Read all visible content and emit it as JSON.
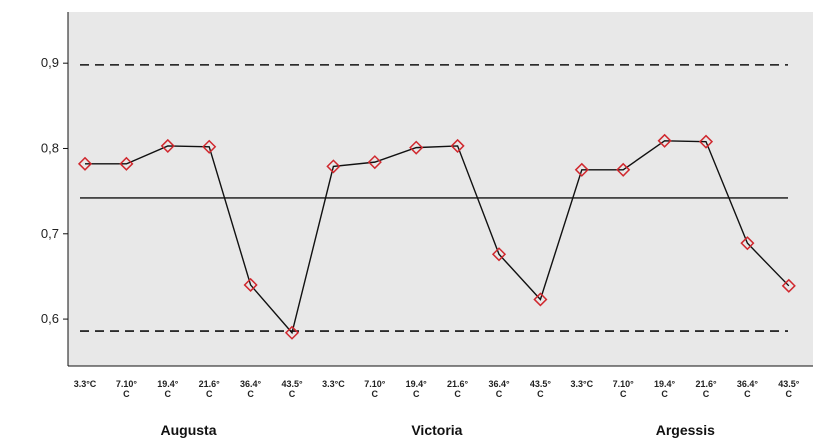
{
  "chart_data": {
    "type": "line",
    "title": "",
    "xlabel": "",
    "ylabel": "",
    "ylim": [
      0.545,
      0.96
    ],
    "yticks": [
      "0,6",
      "0,7",
      "0,8",
      "0,9"
    ],
    "yticks_values": [
      0.6,
      0.7,
      0.8,
      0.9
    ],
    "grid": false,
    "categories": [
      "3.3°C",
      "7.10° C",
      "19.4° C",
      "21.6° C",
      "36.4° C",
      "43.5° C",
      "3.3°C",
      "7.10° C",
      "19.4° C",
      "21.6° C",
      "36.4° C",
      "43.5° C",
      "3.3°C",
      "7.10° C",
      "19.4° C",
      "21.6° C",
      "36.4° C",
      "43.5° C"
    ],
    "category_lines": [
      [
        "3.3°C"
      ],
      [
        "7.10°",
        "C"
      ],
      [
        "19.4°",
        "C"
      ],
      [
        "21.6°",
        "C"
      ],
      [
        "36.4°",
        "C"
      ],
      [
        "43.5°",
        "C"
      ],
      [
        "3.3°C"
      ],
      [
        "7.10°",
        "C"
      ],
      [
        "19.4°",
        "C"
      ],
      [
        "21.6°",
        "C"
      ],
      [
        "36.4°",
        "C"
      ],
      [
        "43.5°",
        "C"
      ],
      [
        "3.3°C"
      ],
      [
        "7.10°",
        "C"
      ],
      [
        "19.4°",
        "C"
      ],
      [
        "21.6°",
        "C"
      ],
      [
        "36.4°",
        "C"
      ],
      [
        "43.5°",
        "C"
      ]
    ],
    "groups": [
      "Augusta",
      "Victoria",
      "Argessis"
    ],
    "series": [
      {
        "values": [
          0.782,
          0.782,
          0.803,
          0.802,
          0.64,
          0.584,
          0.779,
          0.784,
          0.801,
          0.803,
          0.676,
          0.623,
          0.775,
          0.775,
          0.809,
          0.808,
          0.689,
          0.639
        ],
        "color": "#111111",
        "marker": "diamond",
        "marker_color": "#d0282e"
      }
    ],
    "center_line": 0.742,
    "upper_limit": 0.898,
    "lower_limit": 0.586
  },
  "colors": {
    "plot_background": "#e8e8e8",
    "line": "#111111",
    "marker": "#d0282e"
  }
}
